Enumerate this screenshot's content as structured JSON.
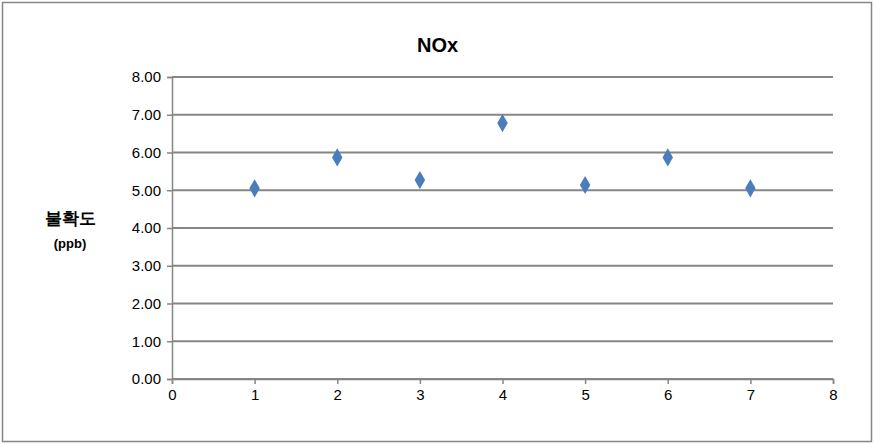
{
  "chart_data": {
    "type": "scatter",
    "title": "NOx",
    "y_label": [
      "불확도",
      "(ppb)"
    ],
    "x": [
      1,
      2,
      3,
      4,
      5,
      6,
      7
    ],
    "values": [
      5.05,
      5.87,
      5.27,
      6.78,
      5.14,
      5.87,
      5.05
    ],
    "color": "#4a7ebb",
    "marker": "diamond",
    "xlim": [
      0,
      8
    ],
    "xticks": [
      0,
      1,
      2,
      3,
      4,
      5,
      6,
      7,
      8
    ],
    "ylim": [
      0,
      8
    ],
    "yticks": [
      {
        "value": 0,
        "label": "0.00"
      },
      {
        "value": 1,
        "label": "1.00"
      },
      {
        "value": 2,
        "label": "2.00"
      },
      {
        "value": 3,
        "label": "3.00"
      },
      {
        "value": 4,
        "label": "4.00"
      },
      {
        "value": 5,
        "label": "5.00"
      },
      {
        "value": 6,
        "label": "6.00"
      },
      {
        "value": 7,
        "label": "7.00"
      },
      {
        "value": 8,
        "label": "8.00"
      }
    ],
    "grid": true
  }
}
